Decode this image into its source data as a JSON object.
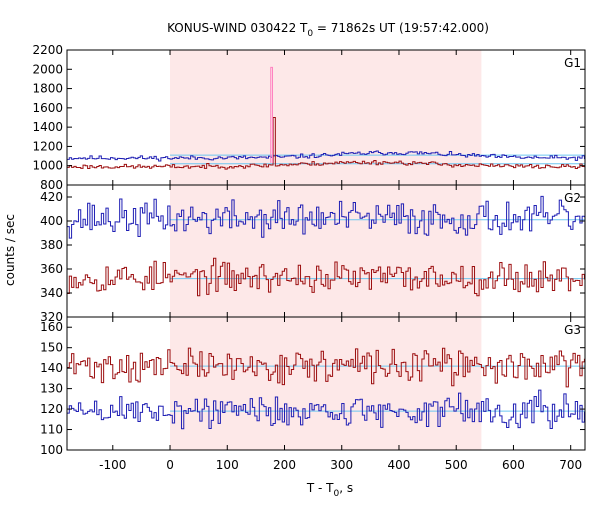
{
  "title": {
    "main": "KONUS-WIND 030422 T",
    "sub": "0",
    "rest": " = 71862s UT (19:57:42.000)"
  },
  "xlabel": {
    "main": "T - T",
    "sub": "0",
    "rest": ", s"
  },
  "ylabel": "counts / sec",
  "colors": {
    "blue": "#1f1fb4",
    "red": "#9c0f10",
    "pink": "#ff80c0",
    "highlight": "#fde8e8",
    "bg_line": "#6ec6f0"
  },
  "chart_data": [
    {
      "type": "line",
      "panel": "G1",
      "highlight_interval": [
        0,
        544
      ],
      "xlim": [
        -180,
        725
      ],
      "ylim": [
        800,
        2200
      ],
      "yticks": [
        800,
        1000,
        1200,
        1400,
        1600,
        1800,
        2000,
        2200
      ],
      "x_ticks": [
        "-100",
        "0",
        "100",
        "200",
        "300",
        "400",
        "500",
        "600",
        "700"
      ],
      "series": [
        {
          "color": "blue",
          "base": 1080,
          "noise": 14,
          "seed": 11,
          "hump": {
            "center": 390,
            "width": 300,
            "height": 55
          },
          "background": 1110
        },
        {
          "color": "red",
          "base": 990,
          "noise": 14,
          "seed": 23,
          "hump": {
            "center": 350,
            "width": 330,
            "height": 45
          },
          "background": 1020,
          "spikes": [
            {
              "x": 178,
              "width": 4,
              "value": 1500
            }
          ]
        },
        {
          "color": "pink",
          "type": "spike",
          "x": 176,
          "width": 3,
          "base": 1030,
          "value": 2020
        }
      ]
    },
    {
      "type": "line",
      "panel": "G2",
      "xlim": [
        -180,
        725
      ],
      "ylim": [
        320,
        430
      ],
      "yticks": [
        320,
        340,
        360,
        380,
        400,
        420
      ],
      "series": [
        {
          "color": "blue",
          "base": 402,
          "noise": 9,
          "seed": 37,
          "background": 401
        },
        {
          "color": "red",
          "base": 353,
          "noise": 8,
          "seed": 53,
          "background": 352
        }
      ]
    },
    {
      "type": "line",
      "panel": "G3",
      "xlim": [
        -180,
        725
      ],
      "ylim": [
        100,
        165
      ],
      "yticks": [
        100,
        110,
        120,
        130,
        140,
        150,
        160
      ],
      "series": [
        {
          "color": "red",
          "base": 141,
          "noise": 5,
          "seed": 71,
          "background": 141
        },
        {
          "color": "blue",
          "base": 119,
          "noise": 5,
          "seed": 89,
          "background": 119
        }
      ]
    }
  ]
}
